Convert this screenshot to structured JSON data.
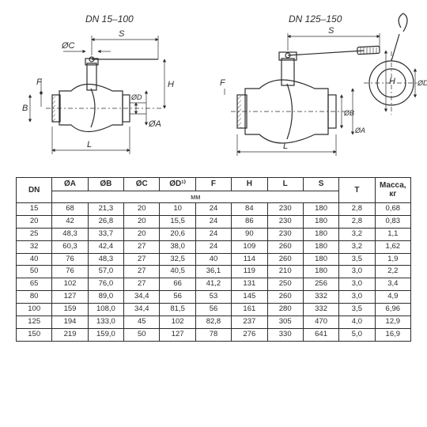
{
  "diagrams": {
    "left_title": "DN 15–100",
    "right_title": "DN 125–150",
    "dim_labels": {
      "oc": "ØC",
      "s": "S",
      "f": "F",
      "b": "B",
      "oa": "ØA",
      "od": "ØD",
      "h": "H",
      "l": "L",
      "ob": "ØB"
    },
    "stroke_color": "#2c2c2c",
    "bg_color": "#ffffff",
    "font_size_label": 11,
    "font_size_title": 12
  },
  "table": {
    "columns": [
      "DN",
      "ØA",
      "ØB",
      "ØC",
      "ØD¹⁾",
      "F",
      "H",
      "L",
      "S",
      "T",
      "Масса, кг"
    ],
    "units_label": "мм",
    "units_span_from": 1,
    "units_span_to": 8,
    "rows": [
      [
        "15",
        "68",
        "21,3",
        "20",
        "10",
        "24",
        "84",
        "230",
        "180",
        "2,8",
        "0,68"
      ],
      [
        "20",
        "42",
        "26,8",
        "20",
        "15,5",
        "24",
        "86",
        "230",
        "180",
        "2,8",
        "0,83"
      ],
      [
        "25",
        "48,3",
        "33,7",
        "20",
        "20,6",
        "24",
        "90",
        "230",
        "180",
        "3,2",
        "1,1"
      ],
      [
        "32",
        "60,3",
        "42,4",
        "27",
        "38,0",
        "24",
        "109",
        "260",
        "180",
        "3,2",
        "1,62"
      ],
      [
        "40",
        "76",
        "48,3",
        "27",
        "32,5",
        "40",
        "114",
        "260",
        "180",
        "3,5",
        "1,9"
      ],
      [
        "50",
        "76",
        "57,0",
        "27",
        "40,5",
        "36,1",
        "119",
        "210",
        "180",
        "3,0",
        "2,2"
      ],
      [
        "65",
        "102",
        "76,0",
        "27",
        "66",
        "41,2",
        "131",
        "250",
        "256",
        "3,0",
        "3,4"
      ],
      [
        "80",
        "127",
        "89,0",
        "34,4",
        "56",
        "53",
        "145",
        "260",
        "332",
        "3,0",
        "4,9"
      ],
      [
        "100",
        "159",
        "108,0",
        "34,4",
        "81,5",
        "56",
        "161",
        "280",
        "332",
        "3,5",
        "6,96"
      ],
      [
        "125",
        "194",
        "133,0",
        "45",
        "102",
        "82,8",
        "237",
        "305",
        "470",
        "4,0",
        "12,9"
      ],
      [
        "150",
        "219",
        "159,0",
        "50",
        "127",
        "78",
        "276",
        "330",
        "641",
        "5,0",
        "16,9"
      ]
    ],
    "header_fontsize": 10,
    "cell_fontsize": 9.5,
    "border_color": "#2c2c2c"
  }
}
